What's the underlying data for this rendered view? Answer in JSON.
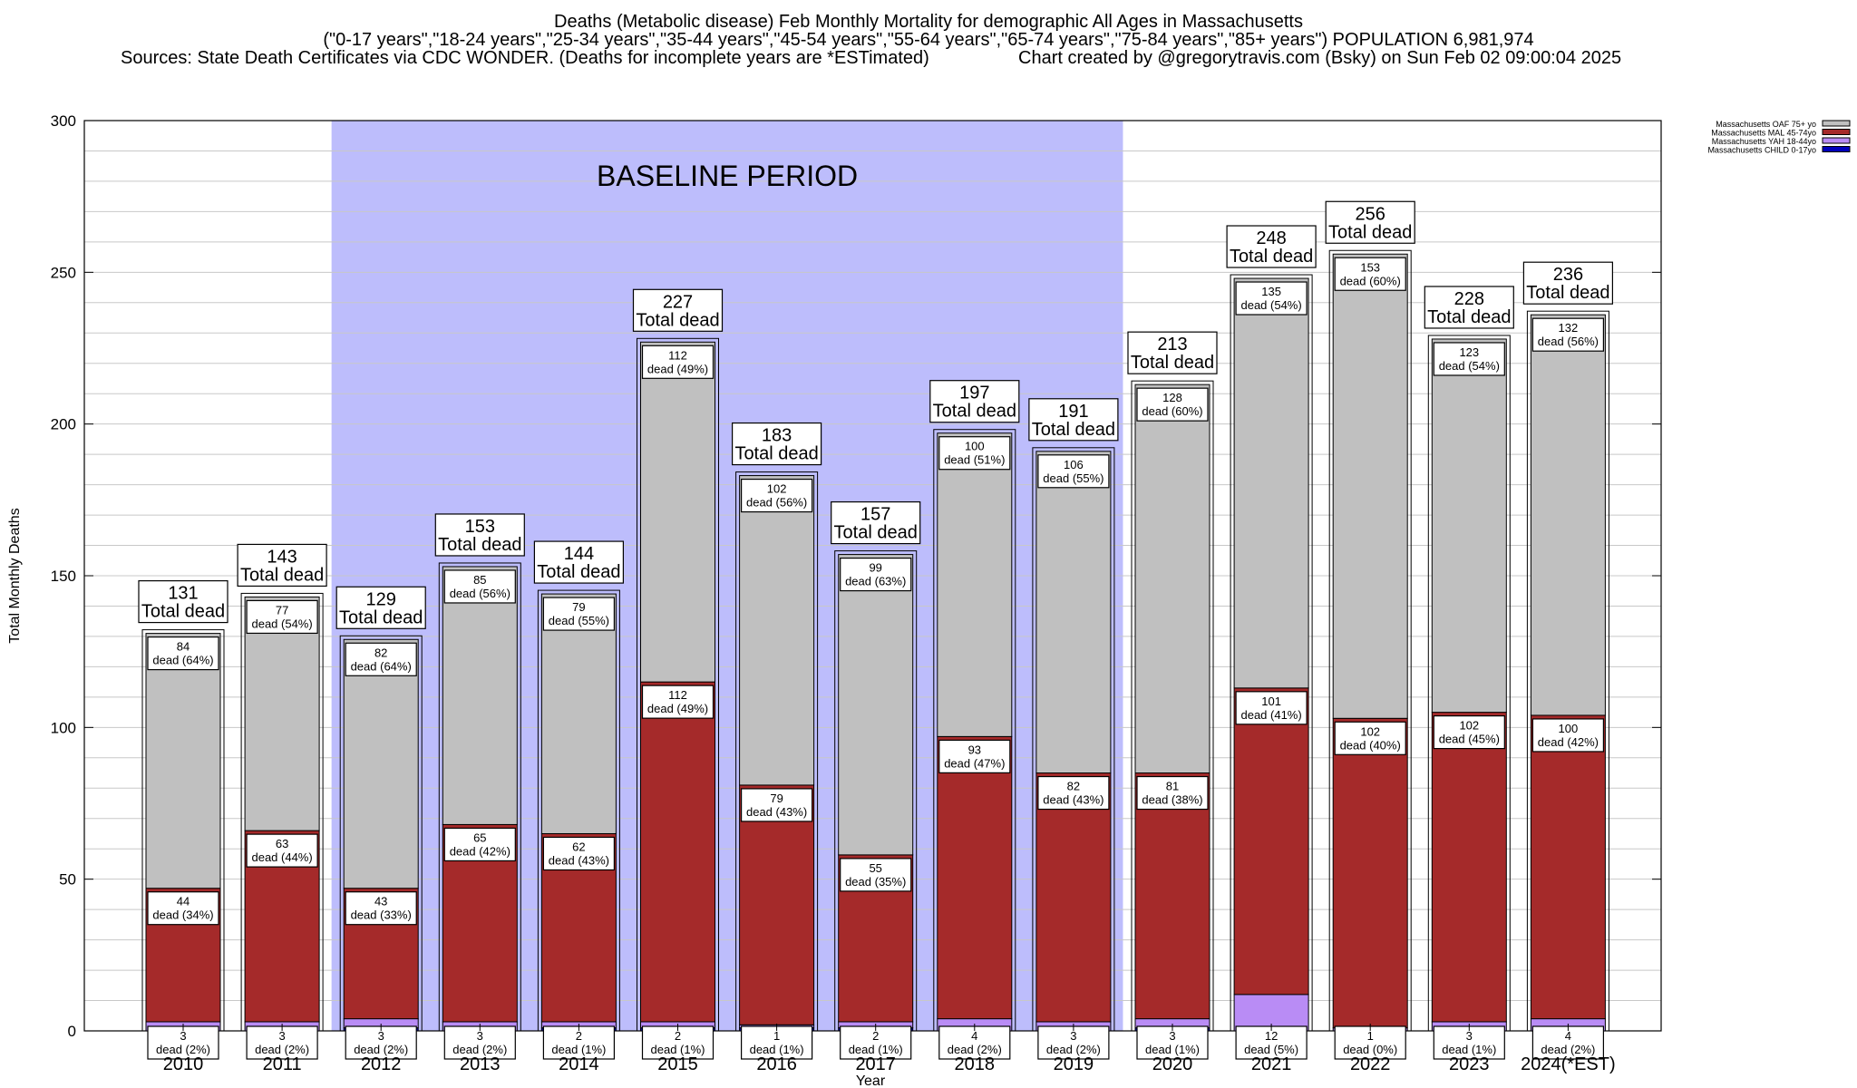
{
  "header": {
    "title": "Deaths (Metabolic disease) Feb Monthly Mortality for demographic All Ages in Massachusetts",
    "subtitle": "(\"0-17 years\",\"18-24 years\",\"25-34 years\",\"35-44 years\",\"45-54 years\",\"55-64 years\",\"65-74 years\",\"75-84 years\",\"85+ years\") POPULATION 6,981,974",
    "sources": "Sources: State Death Certificates via CDC WONDER. (Deaths for incomplete years are *ESTimated)",
    "credit": "Chart created by @gregorytravis.com (Bsky) on Sun Feb 02 09:00:04 2025"
  },
  "chart_data": {
    "type": "bar",
    "stacked": true,
    "xlabel": "Year",
    "ylabel": "Total Monthly Deaths",
    "ylim": [
      0,
      300
    ],
    "yticks": [
      0,
      50,
      100,
      150,
      200,
      250,
      300
    ],
    "grid": true,
    "legend_position": "top-right",
    "baseline_label": "BASELINE PERIOD",
    "baseline_range": [
      "2012",
      "2019"
    ],
    "baseline_color": "#bdbdfc",
    "total_suffix": "Total dead",
    "categories": [
      "2010",
      "2011",
      "2012",
      "2013",
      "2014",
      "2015",
      "2016",
      "2017",
      "2018",
      "2019",
      "2020",
      "2021",
      "2022",
      "2023",
      "2024(*EST)"
    ],
    "totals": [
      131,
      143,
      129,
      153,
      144,
      227,
      183,
      157,
      197,
      191,
      213,
      248,
      256,
      228,
      236
    ],
    "series": [
      {
        "name": "Massachusetts CHILD 0-17yo",
        "color": "#0000bb",
        "values": [
          0,
          0,
          1,
          0,
          1,
          1,
          1,
          1,
          0,
          0,
          1,
          0,
          0,
          0,
          0
        ]
      },
      {
        "name": "Massachusetts YAH 18-44yo",
        "color": "#b98cf5",
        "values": [
          3,
          3,
          3,
          3,
          2,
          2,
          1,
          2,
          4,
          3,
          3,
          12,
          1,
          3,
          4
        ],
        "labels": [
          "dead (2%)",
          "dead (2%)",
          "dead (2%)",
          "dead (2%)",
          "dead (1%)",
          "dead (1%)",
          "dead (1%)",
          "dead (1%)",
          "dead (2%)",
          "dead (2%)",
          "dead (1%)",
          "dead (5%)",
          "dead (0%)",
          "dead (1%)",
          "dead (2%)"
        ]
      },
      {
        "name": "Massachusetts MAL 45-74yo",
        "color": "#a52a2a",
        "values": [
          44,
          63,
          43,
          65,
          62,
          112,
          79,
          55,
          93,
          82,
          81,
          101,
          102,
          102,
          100
        ],
        "labels": [
          "dead (34%)",
          "dead (44%)",
          "dead (33%)",
          "dead (42%)",
          "dead (43%)",
          "dead (49%)",
          "dead (43%)",
          "dead (35%)",
          "dead (47%)",
          "dead (43%)",
          "dead (38%)",
          "dead (41%)",
          "dead (40%)",
          "dead (45%)",
          "dead (42%)"
        ]
      },
      {
        "name": "Massachusetts OAF 75+ yo",
        "color": "#c0c0c0",
        "values": [
          84,
          77,
          82,
          85,
          79,
          112,
          102,
          99,
          100,
          106,
          128,
          135,
          153,
          123,
          132
        ],
        "labels": [
          "dead (64%)",
          "dead (54%)",
          "dead (64%)",
          "dead (56%)",
          "dead (55%)",
          "dead (49%)",
          "dead (56%)",
          "dead (63%)",
          "dead (51%)",
          "dead (55%)",
          "dead (60%)",
          "dead (54%)",
          "dead (60%)",
          "dead (54%)",
          "dead (56%)"
        ]
      }
    ]
  }
}
